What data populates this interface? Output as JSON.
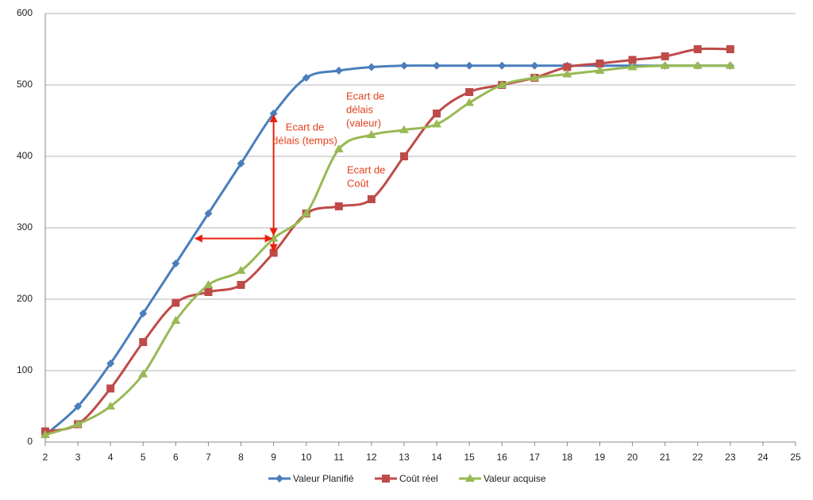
{
  "chart_data": {
    "type": "line",
    "x": [
      2,
      3,
      4,
      5,
      6,
      7,
      8,
      9,
      10,
      11,
      12,
      13,
      14,
      15,
      16,
      17,
      18,
      19,
      20,
      21,
      22,
      23
    ],
    "series": [
      {
        "name": "Valeur Planifié",
        "color": "#4a7ebb",
        "marker": "diamond",
        "values": [
          10,
          50,
          110,
          180,
          250,
          320,
          390,
          460,
          510,
          520,
          525,
          527,
          527,
          527,
          527,
          527,
          527,
          527,
          527,
          527,
          527,
          527
        ]
      },
      {
        "name": "Coût réel",
        "color": "#be4b48",
        "marker": "square",
        "values": [
          15,
          25,
          75,
          140,
          195,
          210,
          220,
          265,
          320,
          330,
          340,
          400,
          460,
          490,
          500,
          510,
          525,
          530,
          535,
          540,
          550,
          550
        ]
      },
      {
        "name": "Valeur acquise",
        "color": "#98b954",
        "marker": "triangle",
        "values": [
          10,
          25,
          50,
          95,
          170,
          220,
          240,
          285,
          320,
          410,
          430,
          437,
          445,
          475,
          500,
          510,
          515,
          520,
          525,
          527,
          527,
          527
        ]
      }
    ],
    "xlim": [
      2,
      25
    ],
    "xticks": [
      2,
      3,
      4,
      5,
      6,
      7,
      8,
      9,
      10,
      11,
      12,
      13,
      14,
      15,
      16,
      17,
      18,
      19,
      20,
      21,
      22,
      23,
      24,
      25
    ],
    "ylim": [
      0,
      600
    ],
    "yticks": [
      0,
      100,
      200,
      300,
      400,
      500,
      600
    ],
    "grid": true,
    "smooth": true,
    "legend": "bottom",
    "annotations": [
      {
        "lines": [
          "Ecart de",
          "délais (temps)"
        ],
        "color": "#e2401c"
      },
      {
        "lines": [
          "Ecart de",
          "délais",
          "(valeur)"
        ],
        "color": "#e2401c"
      },
      {
        "lines": [
          "Ecart de",
          "Coût"
        ],
        "color": "#e2401c"
      }
    ]
  }
}
